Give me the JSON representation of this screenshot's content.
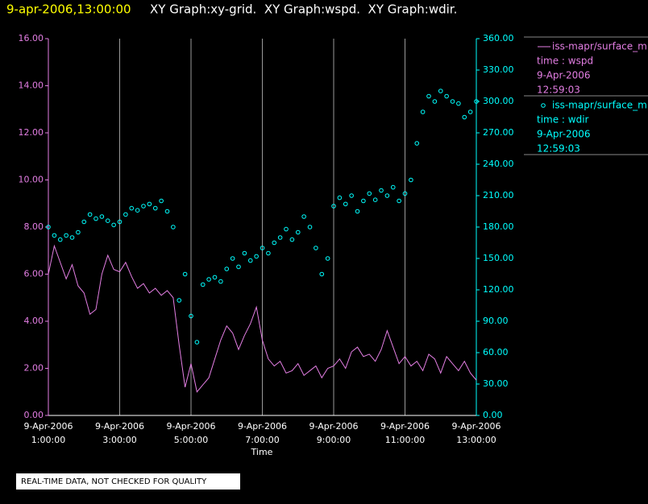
{
  "chart_data": {
    "type": "line_scatter",
    "title_date": "9-apr-2006,13:00:00",
    "title": "XY Graph:xy-grid.  XY Graph:wspd.  XY Graph:wdir.",
    "xlabel": "Time",
    "footer": "REAL-TIME DATA, NOT CHECKED FOR QUALITY",
    "grid": true,
    "xlim": [
      60,
      780
    ],
    "xticks": [
      {
        "value": 60,
        "label": "9-Apr-2006 1:00:00"
      },
      {
        "value": 180,
        "label": "9-Apr-2006 3:00:00"
      },
      {
        "value": 300,
        "label": "9-Apr-2006 5:00:00"
      },
      {
        "value": 420,
        "label": "9-Apr-2006 7:00:00"
      },
      {
        "value": 540,
        "label": "9-Apr-2006 9:00:00"
      },
      {
        "value": 660,
        "label": "9-Apr-2006 11:00:00"
      },
      {
        "value": 780,
        "label": "9-Apr-2006 13:00:00"
      }
    ],
    "ylim": [
      0,
      16
    ],
    "yticks": [
      {
        "value": 0,
        "label": "0.00"
      },
      {
        "value": 2,
        "label": "2.00"
      },
      {
        "value": 4,
        "label": "4.00"
      },
      {
        "value": 6,
        "label": "6.00"
      },
      {
        "value": 8,
        "label": "8.00"
      },
      {
        "value": 10,
        "label": "10.00"
      },
      {
        "value": 12,
        "label": "12.00"
      },
      {
        "value": 14,
        "label": "14.00"
      },
      {
        "value": 16,
        "label": "16.00"
      }
    ],
    "y2lim": [
      0,
      360
    ],
    "y2ticks": [
      {
        "value": 0,
        "label": "0.00"
      },
      {
        "value": 30,
        "label": "30.00"
      },
      {
        "value": 60,
        "label": "60.00"
      },
      {
        "value": 90,
        "label": "90.00"
      },
      {
        "value": 120,
        "label": "120.00"
      },
      {
        "value": 150,
        "label": "150.00"
      },
      {
        "value": 180,
        "label": "180.00"
      },
      {
        "value": 210,
        "label": "210.00"
      },
      {
        "value": 240,
        "label": "240.00"
      },
      {
        "value": 270,
        "label": "270.00"
      },
      {
        "value": 300,
        "label": "300.00"
      },
      {
        "value": 330,
        "label": "330.00"
      },
      {
        "value": 360,
        "label": "360.00"
      }
    ],
    "x": [
      60,
      70,
      80,
      90,
      100,
      110,
      120,
      130,
      140,
      150,
      160,
      170,
      180,
      190,
      200,
      210,
      220,
      230,
      240,
      250,
      260,
      270,
      280,
      290,
      300,
      310,
      320,
      330,
      340,
      350,
      360,
      370,
      380,
      390,
      400,
      410,
      420,
      430,
      440,
      450,
      460,
      470,
      480,
      490,
      500,
      510,
      520,
      530,
      540,
      550,
      560,
      570,
      580,
      590,
      600,
      610,
      620,
      630,
      640,
      650,
      660,
      670,
      680,
      690,
      700,
      710,
      720,
      730,
      740,
      750,
      760,
      770,
      780
    ],
    "series": [
      {
        "name": "iss-mapr/surface_m",
        "kind": "line",
        "color": "#e37ee3",
        "legend_lines": [
          "time : wspd",
          "9-Apr-2006",
          "12:59:03"
        ],
        "values": [
          6.0,
          7.2,
          6.5,
          5.8,
          6.4,
          5.5,
          5.2,
          4.3,
          4.5,
          6.0,
          6.8,
          6.2,
          6.1,
          6.5,
          5.9,
          5.4,
          5.6,
          5.2,
          5.4,
          5.1,
          5.3,
          5.0,
          3.0,
          1.2,
          2.2,
          1.0,
          1.3,
          1.6,
          2.4,
          3.2,
          3.8,
          3.5,
          2.8,
          3.4,
          3.9,
          4.6,
          3.2,
          2.4,
          2.1,
          2.3,
          1.8,
          1.9,
          2.2,
          1.7,
          1.9,
          2.1,
          1.6,
          2.0,
          2.1,
          2.4,
          2.0,
          2.7,
          2.9,
          2.5,
          2.6,
          2.3,
          2.8,
          3.6,
          2.9,
          2.2,
          2.5,
          2.1,
          2.3,
          1.9,
          2.6,
          2.4,
          1.8,
          2.5,
          2.2,
          1.9,
          2.3,
          1.8,
          1.5
        ]
      },
      {
        "name": "iss-mapr/surface_m",
        "kind": "scatter",
        "axis": "y2",
        "color": "#00ffff",
        "legend_lines": [
          "time : wdir",
          "9-Apr-2006",
          "12:59:03"
        ],
        "values": [
          180,
          172,
          168,
          172,
          170,
          175,
          185,
          192,
          188,
          190,
          186,
          182,
          185,
          192,
          198,
          196,
          200,
          202,
          198,
          205,
          195,
          180,
          110,
          135,
          95,
          70,
          125,
          130,
          132,
          128,
          140,
          150,
          142,
          155,
          148,
          152,
          160,
          155,
          165,
          170,
          178,
          168,
          175,
          190,
          180,
          160,
          135,
          150,
          200,
          208,
          202,
          210,
          195,
          205,
          212,
          206,
          215,
          210,
          218,
          205,
          212,
          225,
          260,
          290,
          305,
          300,
          310,
          305,
          300,
          298,
          285,
          290,
          300
        ]
      }
    ]
  }
}
